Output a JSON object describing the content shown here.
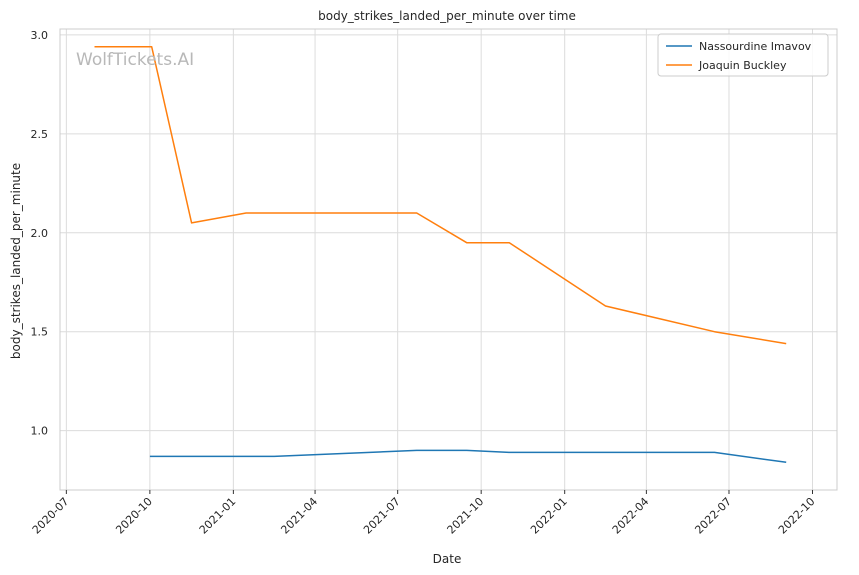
{
  "chart_data": {
    "type": "line",
    "title": "body_strikes_landed_per_minute over time",
    "xlabel": "Date",
    "ylabel": "body_strikes_landed_per_minute",
    "watermark": "WolfTickets.AI",
    "grid": true,
    "legend_position": "top-right",
    "xlim": [
      "2020-06-24",
      "2022-10-28"
    ],
    "ylim": [
      0.7,
      3.03
    ],
    "x_ticks": [
      "2020-07",
      "2020-10",
      "2021-01",
      "2021-04",
      "2021-07",
      "2021-10",
      "2022-01",
      "2022-04",
      "2022-07",
      "2022-10"
    ],
    "y_ticks": [
      1.0,
      1.5,
      2.0,
      2.5,
      3.0
    ],
    "series": [
      {
        "name": "Nassourdine Imavov",
        "color": "#1f77b4",
        "points": [
          {
            "x": "2020-10-01",
            "y": 0.87
          },
          {
            "x": "2021-02-15",
            "y": 0.87
          },
          {
            "x": "2021-07-22",
            "y": 0.9
          },
          {
            "x": "2021-09-15",
            "y": 0.9
          },
          {
            "x": "2021-11-01",
            "y": 0.89
          },
          {
            "x": "2022-06-15",
            "y": 0.89
          },
          {
            "x": "2022-09-02",
            "y": 0.84
          }
        ]
      },
      {
        "name": "Joaquin Buckley",
        "color": "#ff7f0e",
        "points": [
          {
            "x": "2020-08-01",
            "y": 2.94
          },
          {
            "x": "2020-10-03",
            "y": 2.94
          },
          {
            "x": "2020-11-16",
            "y": 2.05
          },
          {
            "x": "2021-01-15",
            "y": 2.1
          },
          {
            "x": "2021-07-22",
            "y": 2.1
          },
          {
            "x": "2021-09-15",
            "y": 1.95
          },
          {
            "x": "2021-11-01",
            "y": 1.95
          },
          {
            "x": "2022-02-15",
            "y": 1.63
          },
          {
            "x": "2022-06-15",
            "y": 1.5
          },
          {
            "x": "2022-09-02",
            "y": 1.44
          }
        ]
      }
    ]
  }
}
